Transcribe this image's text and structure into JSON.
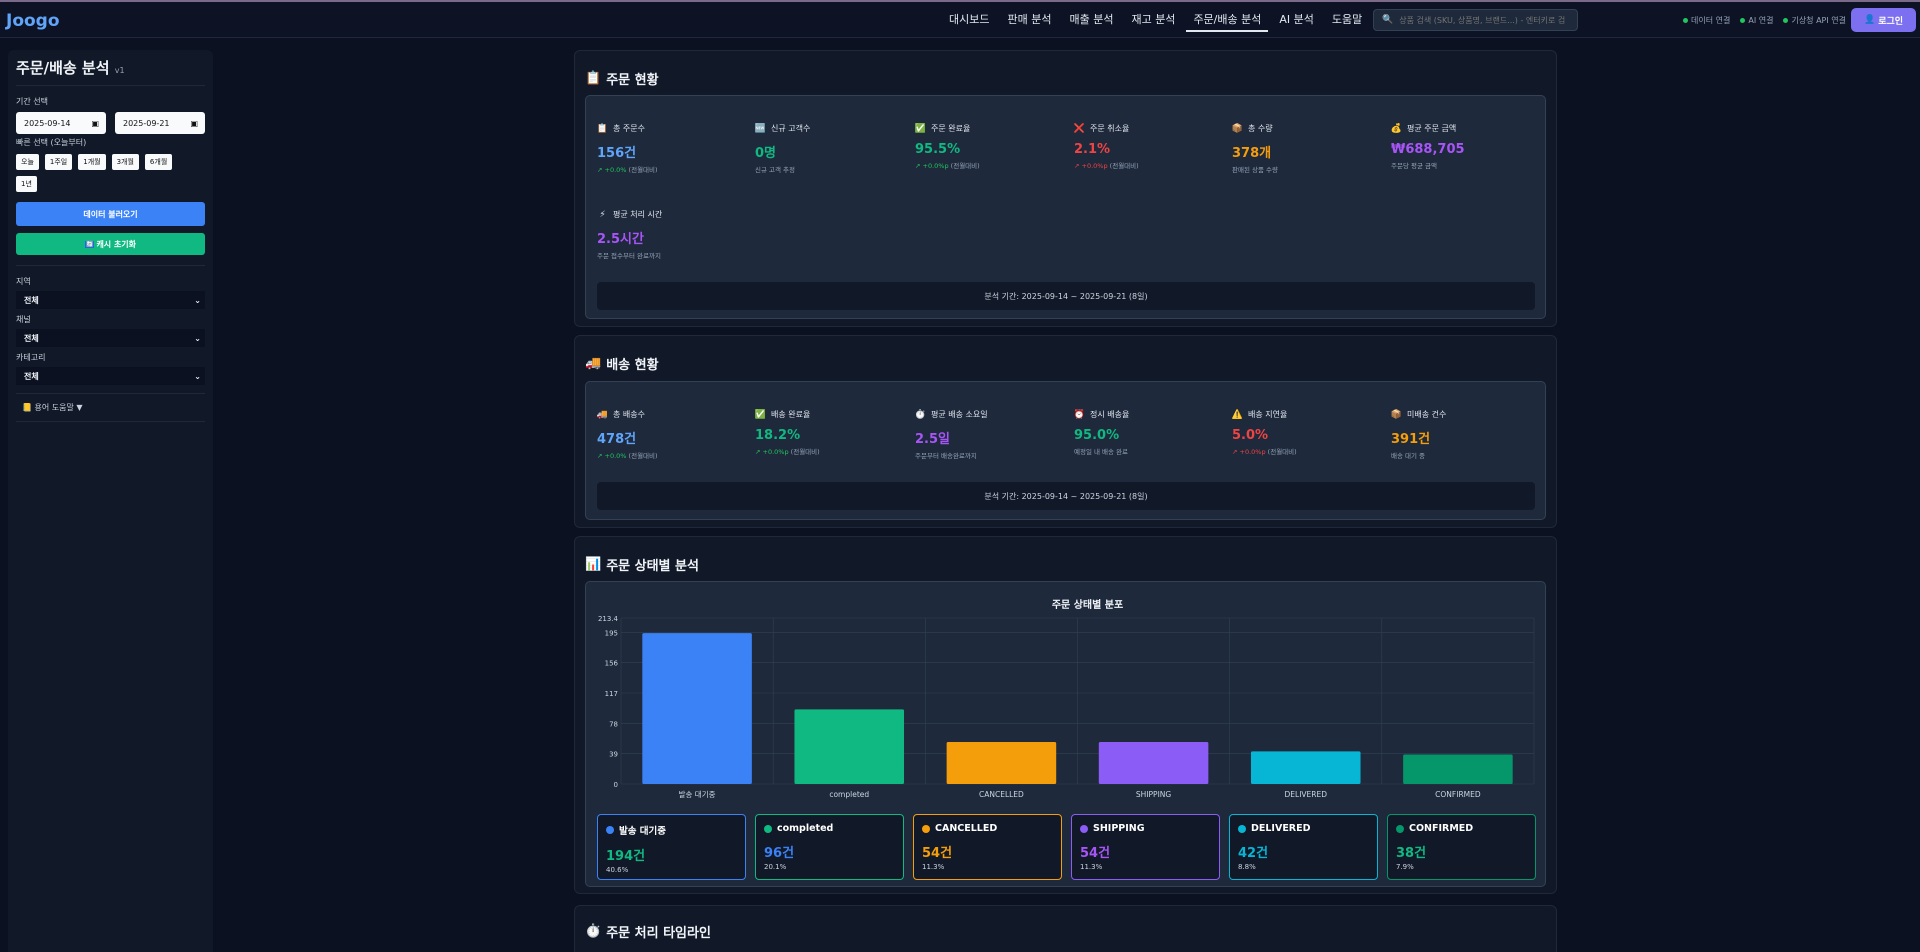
{
  "header": {
    "logo": "Joogo",
    "nav": [
      "대시보드",
      "판매 분석",
      "매출 분석",
      "재고 분석",
      "주문/배송 분석",
      "AI 분석",
      "도움말"
    ],
    "active_nav": "주문/배송 분석",
    "search_placeholder": "상품 검색 (SKU, 상품명, 브랜드...) - 엔터키로 검",
    "status": [
      "데이터 연결",
      "AI 연결",
      "기상청 API 연결"
    ],
    "login": "로그인"
  },
  "sidebar": {
    "title": "주문/배송 분석",
    "version": "v1",
    "period_label": "기간 선택",
    "date_from": "2025-09-14",
    "date_to": "2025-09-21",
    "quick_label": "빠른 선택 (오늘부터)",
    "quick": [
      "오늘",
      "1주일",
      "1개월",
      "3개월",
      "6개월",
      "1년"
    ],
    "load_btn": "데이터 불러오기",
    "reset_btn": "캐시 초기화",
    "region_label": "지역",
    "region_value": "전체",
    "channel_label": "채널",
    "channel_value": "전체",
    "category_label": "카테고리",
    "category_value": "전체",
    "glossary": "용어 도움말 ▼"
  },
  "order_status": {
    "title": "주문 현황",
    "metrics": [
      {
        "icon": "📋",
        "label": "총 주문수",
        "value": "156건",
        "sub_change": "↗ +0.0%",
        "sub_text": " (전월대비)",
        "color": "#60a5fa",
        "dir": "up"
      },
      {
        "icon": "🆕",
        "label": "신규 고객수",
        "value": "0명",
        "sub_change": "",
        "sub_text": "신규 고객 추정",
        "color": "#10b981",
        "dir": ""
      },
      {
        "icon": "✅",
        "label": "주문 완료율",
        "value": "95.5%",
        "sub_change": "↗ +0.0%p",
        "sub_text": " (전월대비)",
        "color": "#10b981",
        "dir": "up"
      },
      {
        "icon": "❌",
        "label": "주문 취소율",
        "value": "2.1%",
        "sub_change": "↗ +0.0%p",
        "sub_text": " (전월대비)",
        "color": "#ef4444",
        "dir": "down"
      },
      {
        "icon": "📦",
        "label": "총 수량",
        "value": "378개",
        "sub_change": "",
        "sub_text": "판매된 상품 수량",
        "color": "#f59e0b",
        "dir": ""
      },
      {
        "icon": "💰",
        "label": "평균 주문 금액",
        "value": "₩688,705",
        "sub_change": "",
        "sub_text": "주문당 평균 금액",
        "color": "#a855f7",
        "dir": ""
      },
      {
        "icon": "⚡",
        "label": "평균 처리 시간",
        "value": "2.5시간",
        "sub_change": "",
        "sub_text": "주문 접수부터 완료까지",
        "color": "#a855f7",
        "dir": ""
      }
    ],
    "period": "분석 기간: 2025-09-14 ~ 2025-09-21 (8일)"
  },
  "delivery_status": {
    "title": "배송 현황",
    "metrics": [
      {
        "icon": "🚚",
        "label": "총 배송수",
        "value": "478건",
        "sub_change": "↗ +0.0%",
        "sub_text": " (전월대비)",
        "color": "#60a5fa",
        "dir": "up"
      },
      {
        "icon": "✅",
        "label": "배송 완료율",
        "value": "18.2%",
        "sub_change": "↗ +0.0%p",
        "sub_text": " (전월대비)",
        "color": "#10b981",
        "dir": "up"
      },
      {
        "icon": "⏱️",
        "label": "평균 배송 소요일",
        "value": "2.5일",
        "sub_change": "",
        "sub_text": "주문부터 배송완료까지",
        "color": "#a855f7",
        "dir": ""
      },
      {
        "icon": "⏰",
        "label": "정시 배송율",
        "value": "95.0%",
        "sub_change": "",
        "sub_text": "예정일 내 배송 완료",
        "color": "#10b981",
        "dir": ""
      },
      {
        "icon": "⚠️",
        "label": "배송 지연율",
        "value": "5.0%",
        "sub_change": "↗ +0.0%p",
        "sub_text": " (전월대비)",
        "color": "#ef4444",
        "dir": "down"
      },
      {
        "icon": "📦",
        "label": "미배송 건수",
        "value": "391건",
        "sub_change": "",
        "sub_text": "배송 대기 중",
        "color": "#f59e0b",
        "dir": ""
      }
    ],
    "period": "분석 기간: 2025-09-14 ~ 2025-09-21 (8일)"
  },
  "status_analysis": {
    "title": "주문 상태별 분석",
    "cards": [
      {
        "name": "발송 대기중",
        "value": "194건",
        "pct": "40.6%",
        "color": "#3b82f6",
        "val_color": "#10b981"
      },
      {
        "name": "completed",
        "value": "96건",
        "pct": "20.1%",
        "color": "#10b981",
        "val_color": "#3b82f6"
      },
      {
        "name": "CANCELLED",
        "value": "54건",
        "pct": "11.3%",
        "color": "#f59e0b",
        "val_color": "#f59e0b"
      },
      {
        "name": "SHIPPING",
        "value": "54건",
        "pct": "11.3%",
        "color": "#8b5cf6",
        "val_color": "#a855f7"
      },
      {
        "name": "DELIVERED",
        "value": "42건",
        "pct": "8.8%",
        "color": "#06b6d4",
        "val_color": "#06b6d4"
      },
      {
        "name": "CONFIRMED",
        "value": "38건",
        "pct": "7.9%",
        "color": "#059669",
        "val_color": "#10b981"
      }
    ]
  },
  "timeline": {
    "title": "주문 처리 타임라인"
  },
  "chart_data": {
    "type": "bar",
    "title": "주문 상태별 분포",
    "categories": [
      "발송 대기중",
      "completed",
      "CANCELLED",
      "SHIPPING",
      "DELIVERED",
      "CONFIRMED"
    ],
    "values": [
      194,
      96,
      54,
      54,
      42,
      38
    ],
    "colors": [
      "#3b82f6",
      "#10b981",
      "#f59e0b",
      "#8b5cf6",
      "#06b6d4",
      "#059669"
    ],
    "yticks": [
      0,
      39,
      78,
      117,
      156,
      195
    ],
    "ymax_label": "213.4",
    "ylim": [
      0,
      213.4
    ],
    "grid": true
  }
}
